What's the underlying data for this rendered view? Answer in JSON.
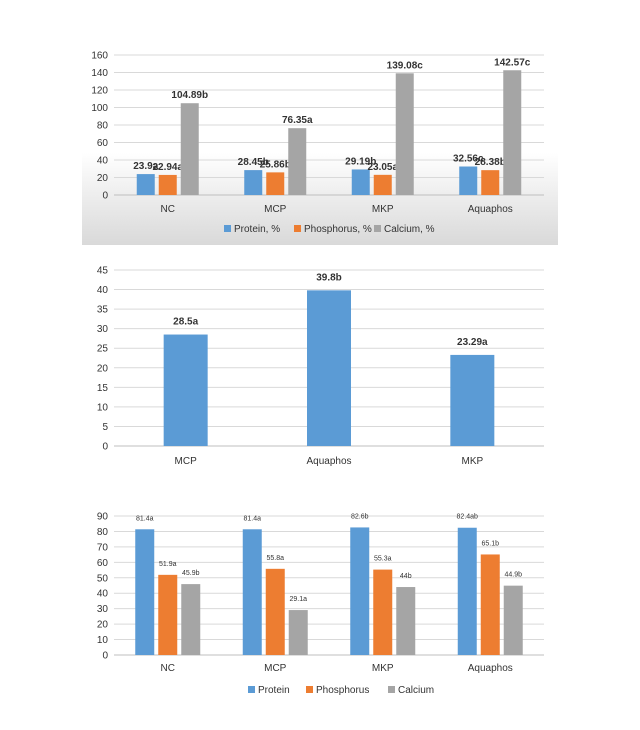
{
  "chart_data": [
    {
      "type": "bar",
      "categories": [
        "NC",
        "MCP",
        "MKP",
        "Aquaphos"
      ],
      "series": [
        {
          "name": "Protein, %",
          "values": [
            23.9,
            28.45,
            29.19,
            32.56
          ],
          "labels": [
            "23.9a",
            "28.45b",
            "29.19b",
            "32.56c"
          ],
          "color": "#5B9BD5"
        },
        {
          "name": "Phosphorus, %",
          "values": [
            22.94,
            25.86,
            23.05,
            28.38
          ],
          "labels": [
            "22.94a",
            "25.86b",
            "23.05a",
            "28.38b"
          ],
          "color": "#ED7D31"
        },
        {
          "name": "Calcium, %",
          "values": [
            104.89,
            76.35,
            139.08,
            142.57
          ],
          "labels": [
            "104.89b",
            "76.35a",
            "139.08c",
            "142.57c"
          ],
          "color": "#A5A5A5"
        }
      ],
      "yticks": [
        "0",
        "20",
        "40",
        "60",
        "80",
        "100",
        "120",
        "140",
        "160"
      ],
      "ylim": [
        0,
        160
      ],
      "grid": true,
      "legend_position": "bottom"
    },
    {
      "type": "bar",
      "categories": [
        "MCP",
        "Aquaphos",
        "MKP"
      ],
      "series": [
        {
          "values": [
            28.5,
            39.8,
            23.29
          ],
          "labels": [
            "28.5a",
            "39.8b",
            "23.29a"
          ],
          "color": "#5B9BD5"
        }
      ],
      "yticks": [
        "0",
        "5",
        "10",
        "15",
        "20",
        "25",
        "30",
        "35",
        "40",
        "45"
      ],
      "ylim": [
        0,
        45
      ],
      "grid": true,
      "legend_position": "none"
    },
    {
      "type": "bar",
      "categories": [
        "NC",
        "MCP",
        "MKP",
        "Aquaphos"
      ],
      "series": [
        {
          "name": "Protein",
          "values": [
            81.4,
            81.4,
            82.6,
            82.4
          ],
          "labels": [
            "81.4a",
            "81.4a",
            "82.6b",
            "82.4ab"
          ],
          "color": "#5B9BD5"
        },
        {
          "name": "Phosphorus",
          "values": [
            51.9,
            55.8,
            55.3,
            65.1
          ],
          "labels": [
            "51.9a",
            "55.8a",
            "55.3a",
            "65.1b"
          ],
          "color": "#ED7D31"
        },
        {
          "name": "Calcium",
          "values": [
            45.9,
            29.1,
            44,
            44.9
          ],
          "labels": [
            "45.9b",
            "29.1a",
            "44b",
            "44.9b"
          ],
          "color": "#A5A5A5"
        }
      ],
      "yticks": [
        "0",
        "10",
        "20",
        "30",
        "40",
        "50",
        "60",
        "70",
        "80",
        "90"
      ],
      "ylim": [
        0,
        90
      ],
      "grid": true,
      "legend_position": "bottom"
    }
  ]
}
